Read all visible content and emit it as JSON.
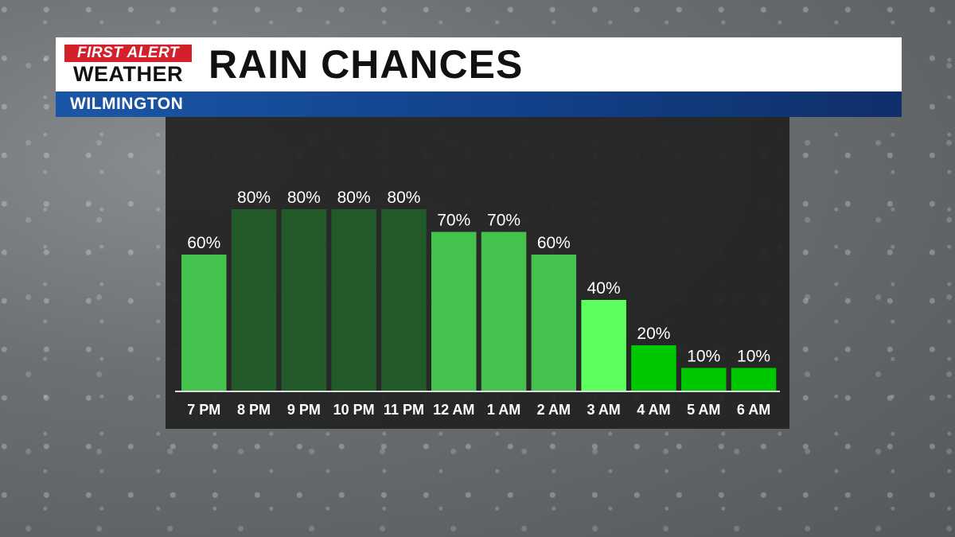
{
  "header": {
    "logo_line1": "FIRST ALERT",
    "logo_line2": "WEATHER",
    "title": "RAIN CHANCES",
    "location": "WILMINGTON"
  },
  "colors": {
    "brand_red": "#d4202a",
    "banner_blue": "#123f86",
    "panel_bg": "#222222"
  },
  "chart_data": {
    "type": "bar",
    "title": "RAIN CHANCES",
    "xlabel": "",
    "ylabel": "",
    "ylim": [
      0,
      100
    ],
    "grid": false,
    "categories": [
      "7 PM",
      "8 PM",
      "9 PM",
      "10 PM",
      "11 PM",
      "12 AM",
      "1 AM",
      "2 AM",
      "3 AM",
      "4 AM",
      "5 AM",
      "6 AM"
    ],
    "values": [
      60,
      80,
      80,
      80,
      80,
      70,
      70,
      60,
      40,
      20,
      10,
      10
    ],
    "labels": [
      "60%",
      "80%",
      "80%",
      "80%",
      "80%",
      "70%",
      "70%",
      "60%",
      "40%",
      "20%",
      "10%",
      "10%"
    ],
    "bar_colors": [
      "#44c24d",
      "#235a2a",
      "#235a2a",
      "#235a2a",
      "#235a2a",
      "#44c24d",
      "#44c24d",
      "#44c24d",
      "#5cff5c",
      "#00c800",
      "#00c800",
      "#00c800"
    ]
  }
}
